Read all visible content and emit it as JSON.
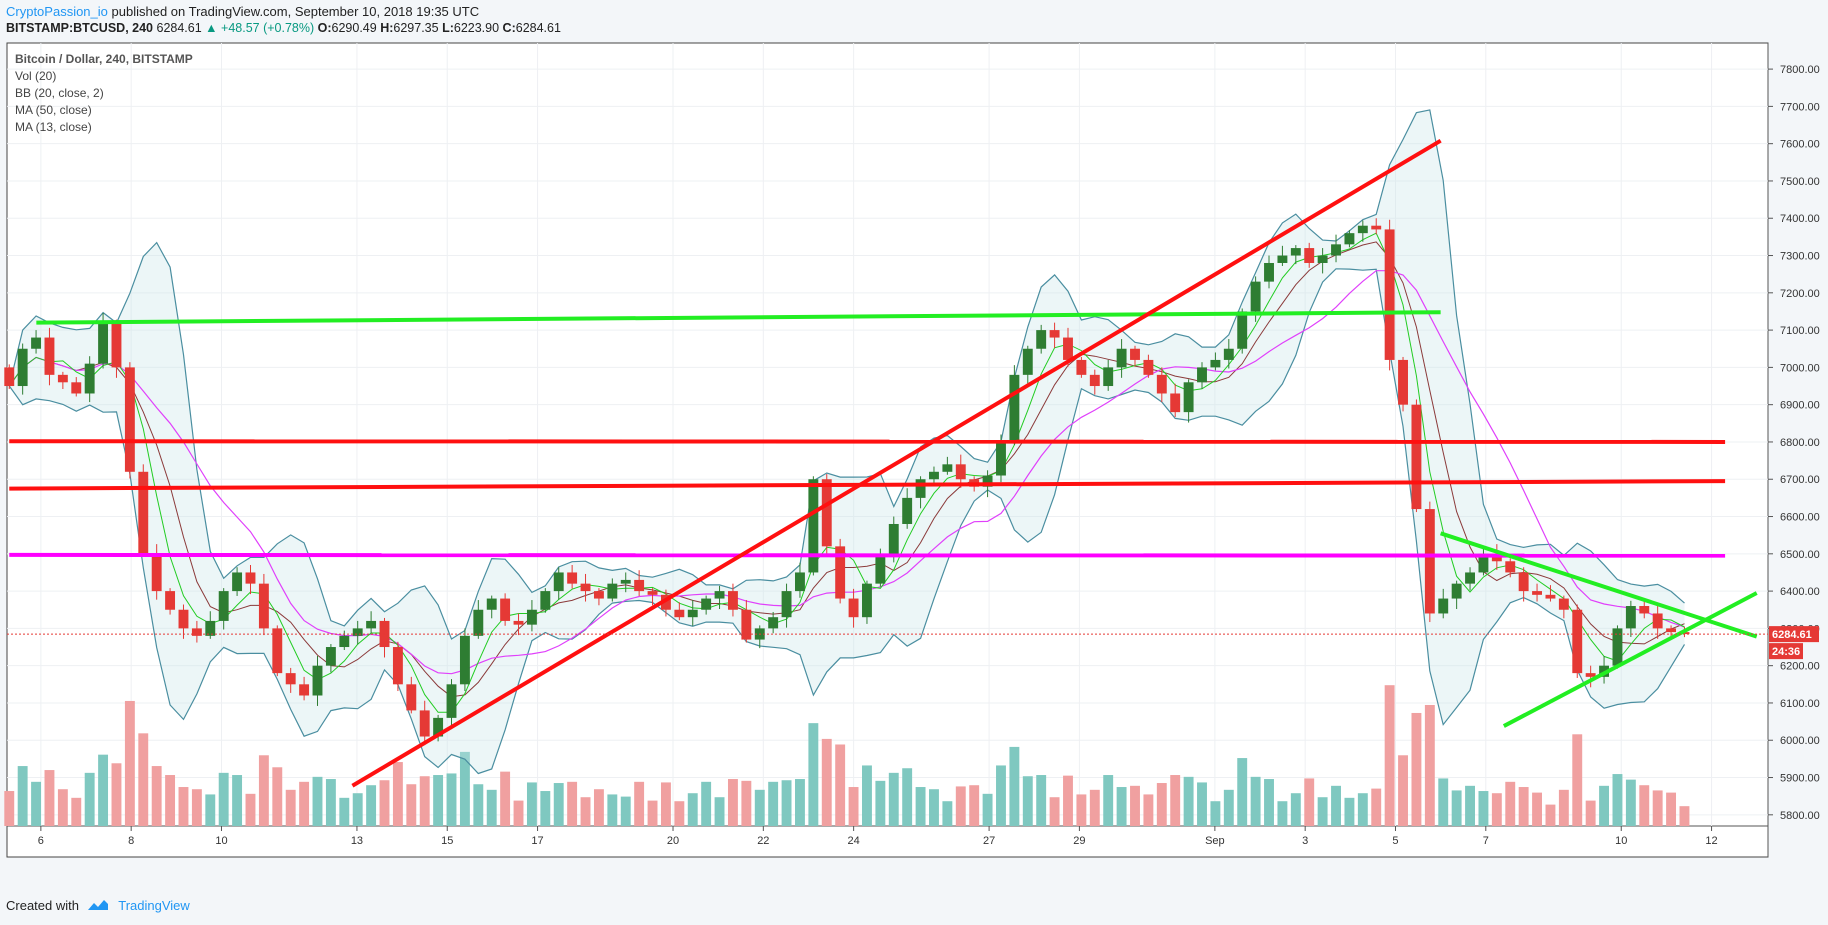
{
  "header": {
    "author": "CryptoPassion_io",
    "published": "published on TradingView.com, September 10, 2018 19:35 UTC",
    "symbol": "BITSTAMP:BTCUSD, 240",
    "last": "6284.61",
    "change": "▲ +48.57 (+0.78%)",
    "o_label": "O:",
    "o_value": "6290.49",
    "h_label": "H:",
    "h_value": "6297.35",
    "l_label": "L:",
    "l_value": "6223.90",
    "c_label": "C:",
    "c_value": "6284.61"
  },
  "legend": [
    "Bitcoin / Dollar, 240, BITSTAMP",
    "Vol (20)",
    "BB (20, close, 2)",
    "MA (50, close)",
    "MA (13, close)"
  ],
  "price_tag": "6284.61",
  "time_tag": "24:36",
  "footer": {
    "created": "Created with",
    "brand": "TradingView"
  },
  "colors": {
    "up": "#2e7d32",
    "down": "#e53935",
    "red_line": "#ff1010",
    "green_line": "#22ee22",
    "magenta_line": "#ff00ff",
    "bb_band": "#4a8ea0",
    "ma50": "#e040fb",
    "ma13": "#22cc22",
    "bb_mid": "#8b3a3a",
    "vol_up": "#7fc8c0",
    "vol_down": "#f0a0a0"
  },
  "chart_data": {
    "type": "candlestick",
    "symbol": "BITSTAMP:BTCUSD",
    "interval": "240",
    "y_ticks": [
      7800,
      7700,
      7600,
      7500,
      7400,
      7300,
      7200,
      7100,
      7000,
      6900,
      6800,
      6700,
      6600,
      6500,
      6400,
      6300,
      6200,
      6100,
      6000,
      5900,
      5800
    ],
    "y_tick_labels": [
      "7800.00",
      "7700.00",
      "7600.00",
      "7500.00",
      "7400.00",
      "7300.00",
      "7200.00",
      "7100.00",
      "7000.00",
      "6900.00",
      "6800.00",
      "6700.00",
      "6600.00",
      "6500.00",
      "6400.00",
      "6300.00",
      "6200.00",
      "6100.00",
      "6000.00",
      "5900.00",
      "5800.00"
    ],
    "x_tick_labels": [
      "6",
      "8",
      "10",
      "13",
      "15",
      "17",
      "20",
      "22",
      "24",
      "27",
      "29",
      "Sep",
      "3",
      "5",
      "7",
      "10",
      "12"
    ],
    "x_tick_days": [
      6,
      8,
      10,
      13,
      15,
      17,
      20,
      22,
      24,
      27,
      29,
      32,
      34,
      36,
      38,
      41,
      43
    ],
    "ylim": [
      5770,
      7870
    ],
    "xlim": [
      5.25,
      44.25
    ],
    "last_price": 6284.61,
    "closes": [
      6950,
      7050,
      7080,
      6980,
      6960,
      6930,
      7010,
      7120,
      7000,
      6720,
      6500,
      6400,
      6350,
      6300,
      6280,
      6320,
      6400,
      6450,
      6420,
      6300,
      6180,
      6150,
      6120,
      6200,
      6250,
      6280,
      6300,
      6320,
      6250,
      6150,
      6080,
      6010,
      6060,
      6150,
      6280,
      6350,
      6380,
      6320,
      6310,
      6350,
      6400,
      6450,
      6420,
      6400,
      6380,
      6420,
      6430,
      6400,
      6390,
      6350,
      6330,
      6350,
      6380,
      6400,
      6350,
      6270,
      6300,
      6330,
      6400,
      6450,
      6700,
      6520,
      6380,
      6330,
      6420,
      6500,
      6580,
      6650,
      6700,
      6720,
      6740,
      6700,
      6680,
      6710,
      6800,
      6980,
      7050,
      7100,
      7080,
      7020,
      6980,
      6950,
      7000,
      7050,
      7020,
      6980,
      6930,
      6880,
      6960,
      7000,
      7020,
      7050,
      7150,
      7230,
      7280,
      7300,
      7320,
      7280,
      7300,
      7330,
      7360,
      7380,
      7370,
      7020,
      6900,
      6620,
      6340,
      6380,
      6420,
      6450,
      6500,
      6480,
      6450,
      6400,
      6390,
      6380,
      6350,
      6180,
      6170,
      6200,
      6300,
      6360,
      6340,
      6300,
      6290,
      6284.61
    ],
    "trend_lines": [
      {
        "color": "red",
        "from": [
          5.3,
          6675
        ],
        "to": [
          43.3,
          6695
        ]
      },
      {
        "color": "red",
        "from": [
          5.3,
          6802
        ],
        "to": [
          43.3,
          6800
        ]
      },
      {
        "color": "magenta",
        "from": [
          5.3,
          6497
        ],
        "to": [
          43.3,
          6495
        ]
      },
      {
        "color": "green",
        "from": [
          5.9,
          7120
        ],
        "to": [
          37.0,
          7148
        ]
      },
      {
        "color": "red",
        "from": [
          12.9,
          5878
        ],
        "to": [
          37.0,
          7608
        ]
      },
      {
        "color": "green",
        "from": [
          37.0,
          6555
        ],
        "to": [
          44.0,
          6278
        ]
      },
      {
        "color": "green",
        "from": [
          38.4,
          6038
        ],
        "to": [
          44.0,
          6395
        ]
      }
    ]
  }
}
